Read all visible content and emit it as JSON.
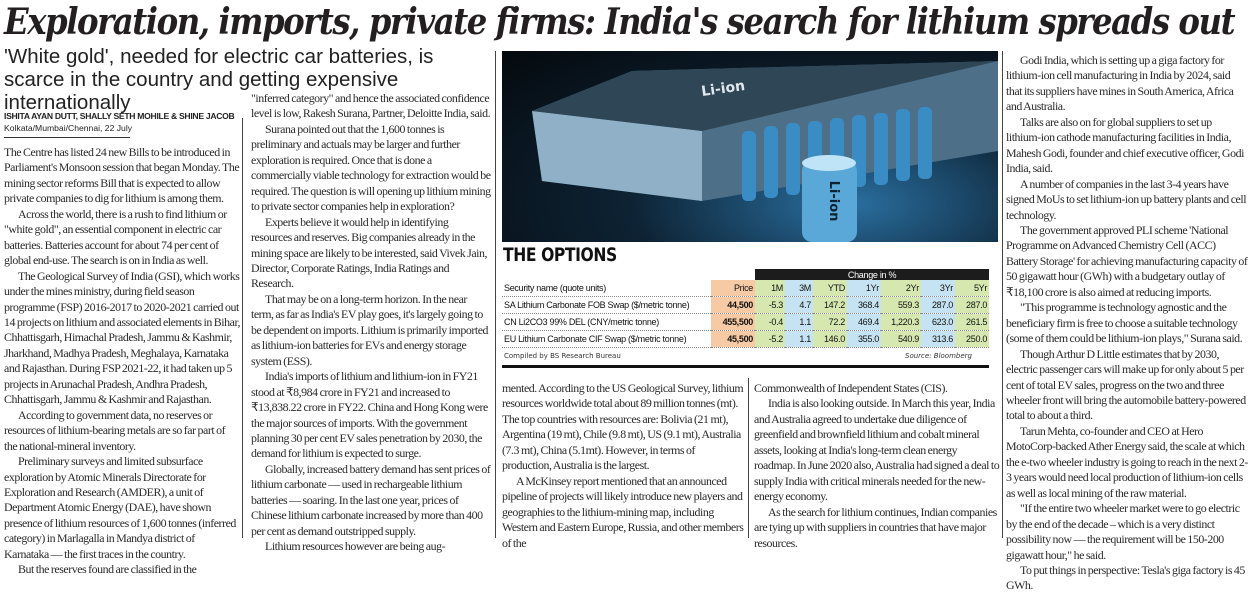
{
  "headline": "Exploration, imports, private firms: India's search for lithium spreads out",
  "subheadline": "'White gold', needed for electric car batteries, is scarce in the country and getting expensive internationally",
  "byline": {
    "authors": "ISHITA AYAN DUTT, SHALLY SETH MOHILE & SHINE JACOB",
    "dateline": "Kolkata/Mumbai/Chennai, 22 July"
  },
  "columns": {
    "col1": [
      "The Centre has listed 24 new Bills to be introduced in Parliament's Monsoon session that began Monday. The mining sector reforms Bill that is expected to allow private companies to dig for lithium is among them.",
      "Across the world, there is a rush to find lithium or \"white gold\", an essential component in electric car batteries. Batteries account for about 74 per cent of global end-use. The search is on in India as well.",
      "The Geological Survey of India (GSI), which works under the mines ministry, during field season programme (FSP) 2016-2017 to 2020-2021 carried out 14 projects on lithium and associated elements in Bihar, Chhattisgarh, Himachal Pradesh, Jammu & Kashmir, Jharkhand, Madhya Pradesh, Meghalaya, Karnataka and Rajasthan. During FSP 2021-22, it had taken up 5 projects in Arunachal Pradesh, Andhra Pradesh, Chhattisgarh, Jammu & Kashmir and Rajasthan.",
      "According to government data, no reserves or resources of lithium-bearing metals are so far part of the national-mineral inventory.",
      "Preliminary surveys and limited subsurface exploration by Atomic Minerals Directorate for Exploration and Research (AMDER), a unit of Department Atomic Energy (DAE), have shown presence of lithium resources of 1,600 tonnes (inferred category) in Marlagalla in Mandya district of Karnataka — the first traces in the country.",
      "But the reserves found are classified in the"
    ],
    "col2": [
      "\"inferred category\" and hence the associated confidence level is low, Rakesh Surana, Partner, Deloitte India, said.",
      "Surana pointed out that the 1,600 tonnes is preliminary and actuals may be larger and further exploration is required. Once that is done a commercially viable technology for extraction would be required. The question is will opening up lithium mining to private sector companies help in exploration?",
      "Experts believe it would help in identifying resources and reserves. Big companies already in the mining space are likely to be interested, said Vivek Jain, Director, Corporate Ratings, India Ratings and Research.",
      "That may be on a long-term horizon. In the near term, as far as India's EV play goes, it's largely going to be dependent on imports. Lithium is primarily imported as lithium-ion batteries for EVs and energy storage system (ESS).",
      "India's imports of lithium and lithium-ion in FY21 stood at ₹8,984 crore in FY21 and increased to ₹13,838.22 crore in FY22. China and Hong Kong were the major sources of imports. With the government planning 30 per cent EV sales penetration by 2030, the demand for lithium is expected to surge.",
      "Globally, increased battery demand has sent prices of lithium carbonate — used in rechargeable lithium batteries — soaring. In the last one year, prices of Chinese lithium carbonate increased by more than 400 per cent as demand outstripped supply.",
      "Lithium resources however are being aug-"
    ],
    "col3": [
      "mented. According to the US Geological Survey, lithium resources worldwide total about 89 million tonnes (mt). The top countries with resources are: Bolivia (21 mt), Argentina (19 mt), Chile (9.8 mt), US (9.1 mt), Australia (7.3 mt), China (5.1mt). However, in terms of production, Australia is the largest.",
      "A McKinsey report mentioned that an announced pipeline of projects will likely introduce new players and geographies to the lithium-mining map, including Western and Eastern Europe, Russia, and other members of the"
    ],
    "col4": [
      "Commonwealth of Independent States (CIS).",
      "India is also looking outside. In March this year, India and Australia agreed to undertake due diligence of greenfield and brownfield lithium and cobalt mineral assets, looking at India's long-term clean energy roadmap. In June 2020 also, Australia had signed a deal to supply India with critical minerals needed for the new-energy economy.",
      "As the search for lithium continues, Indian companies are tying up with suppliers in countries that have major resources."
    ],
    "col5": [
      "Godi India, which is setting up a giga factory for lithium-ion cell manufacturing in India by 2024, said that its suppliers have mines in South America, Africa and Australia.",
      "Talks are also on for global suppliers to set up lithium-ion cathode manufacturing facilities in India, Mahesh Godi, founder and chief executive officer, Godi India, said.",
      "A number of companies in the last 3-4 years have signed MoUs to set lithium-ion up battery plants and cell technology.",
      "The government approved PLI scheme 'National Programme on Advanced Chemistry Cell (ACC) Battery Storage' for achieving manufacturing capacity of 50 gigawatt hour (GWh) with a budgetary outlay of ₹18,100 crore is also aimed at reducing imports.",
      "\"This programme is technology agnostic and the beneficiary firm is free to choose a suitable technology (some of them could be lithium-ion plays,\" Surana said.",
      "Though Arthur D Little estimates that by 2030, electric passenger cars will make up for only about 5 per cent of total EV sales, progress on the two and three wheeler front will bring the automobile battery-powered total to about a third.",
      "Tarun Mehta, co-founder and CEO at Hero MotoCorp-backed Ather Energy said, the scale at which the e-two wheeler industry is going to reach in the next 2-3 years would need local production of lithium-ion cells as well as local mining of the raw material.",
      "\"If the entire two wheeler market were to go electric by the end of the decade – which is a very distinct possibility now — the requirement will be 150-200 gigawatt hour,\" he said.",
      "To put things in perspective: Tesla's giga factory is 45 GWh."
    ]
  },
  "photo": {
    "label": "Li-ion"
  },
  "options_table": {
    "title": "THE OPTIONS",
    "group_header": "Change in %",
    "headers": [
      "Security name (quote units)",
      "Price",
      "1M",
      "3M",
      "YTD",
      "1Yr",
      "2Yr",
      "3Yr",
      "5Yr"
    ],
    "rows": [
      [
        "SA Lithium Carbonate FOB Swap ($/metric tonne)",
        "44,500",
        "-5.3",
        "4.7",
        "147.2",
        "368.4",
        "559.3",
        "287.0",
        "287.0"
      ],
      [
        "CN Li2CO3 99% DEL (CNY/metric tonne)",
        "455,500",
        "-0.4",
        "1.1",
        "72.2",
        "469.4",
        "1,220.3",
        "623.0",
        "261.5"
      ],
      [
        "EU Lithium Carbonate CIF Swap ($/metric tonne)",
        "45,500",
        "-5.2",
        "1.1",
        "146.0",
        "355.0",
        "540.9",
        "313.6",
        "250.0"
      ]
    ],
    "compiled": "Compiled by BS Research Bureau",
    "source": "Source: Bloomberg",
    "colors": {
      "price": "#f6caa5",
      "green": "#d6e8b0",
      "blue": "#c5e3f2"
    }
  }
}
